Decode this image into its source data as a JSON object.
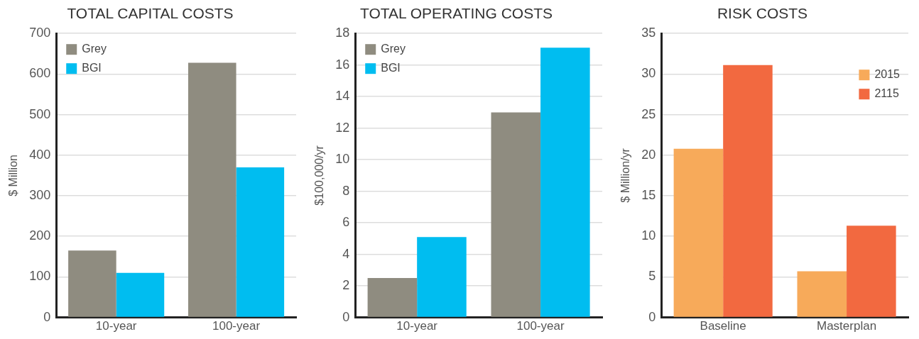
{
  "chart_data": [
    {
      "type": "bar",
      "title": "TOTAL CAPITAL COSTS",
      "ylabel": "$ Million",
      "categories": [
        "10-year",
        "100-year"
      ],
      "series": [
        {
          "name": "Grey",
          "color": "#8f8c80",
          "values": [
            165,
            628
          ]
        },
        {
          "name": "BGI",
          "color": "#00bdf0",
          "values": [
            110,
            370
          ]
        }
      ],
      "ylim": [
        0,
        700
      ],
      "yticks": [
        0,
        100,
        200,
        300,
        400,
        500,
        600,
        700
      ],
      "grid": "y",
      "legend": "top left"
    },
    {
      "type": "bar",
      "title": "TOTAL OPERATING COSTS",
      "ylabel": "$100,000/yr",
      "categories": [
        "10-year",
        "100-year"
      ],
      "series": [
        {
          "name": "Grey",
          "color": "#8f8c80",
          "values": [
            2.5,
            13
          ]
        },
        {
          "name": "BGI",
          "color": "#00bdf0",
          "values": [
            5.1,
            17.1
          ]
        }
      ],
      "ylim": [
        0,
        18
      ],
      "yticks": [
        0,
        2,
        4,
        6,
        8,
        10,
        12,
        14,
        16,
        18
      ],
      "grid": "y",
      "legend": "top left"
    },
    {
      "type": "bar",
      "title": "RISK COSTS",
      "ylabel": "$ Million/yr",
      "categories": [
        "Baseline",
        "Masterplan"
      ],
      "series": [
        {
          "name": "2015",
          "color": "#f7aa5a",
          "values": [
            20.8,
            5.7
          ]
        },
        {
          "name": "2115",
          "color": "#f26940",
          "values": [
            31.1,
            11.3
          ]
        }
      ],
      "ylim": [
        0,
        35
      ],
      "yticks": [
        0,
        5,
        10,
        15,
        20,
        25,
        30,
        35
      ],
      "grid": "y",
      "legend": "top right"
    }
  ]
}
